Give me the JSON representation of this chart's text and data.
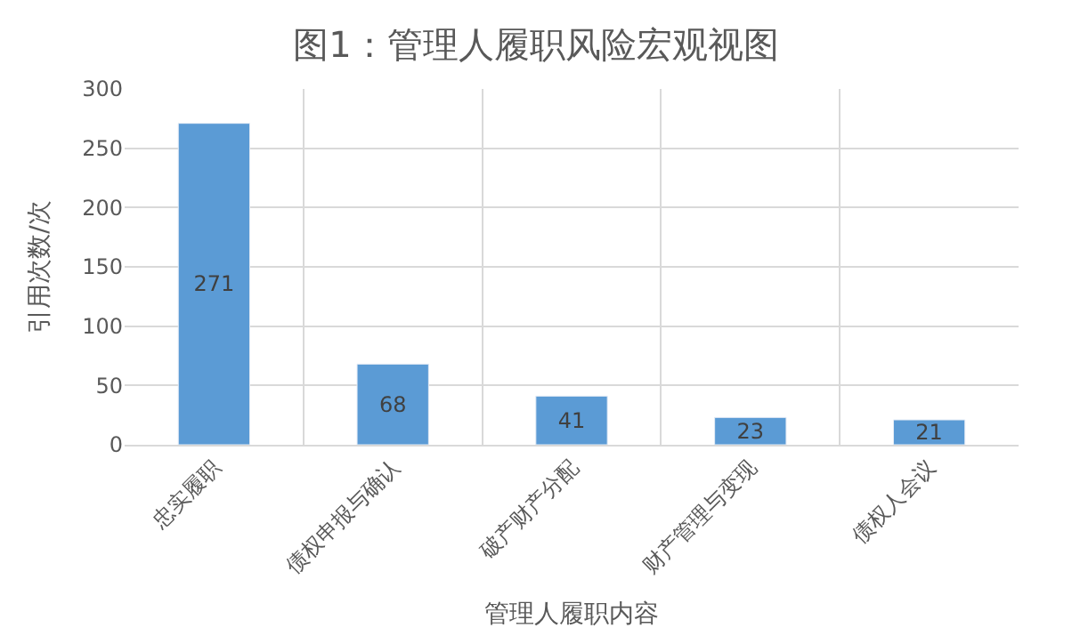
{
  "chart_data": {
    "type": "bar",
    "title": "图1：管理人履职风险宏观视图",
    "xlabel": "管理人履职内容",
    "ylabel": "引用次数/次",
    "categories": [
      "忠实履职",
      "债权申报与确认",
      "破产财产分配",
      "财产管理与变现",
      "债权人会议"
    ],
    "values": [
      271,
      68,
      41,
      23,
      21
    ],
    "color": "#5b9bd5",
    "ylim": [
      0,
      300
    ],
    "yticks": [
      0,
      50,
      100,
      150,
      200,
      250,
      300
    ],
    "grid": true,
    "data_labels": true
  }
}
